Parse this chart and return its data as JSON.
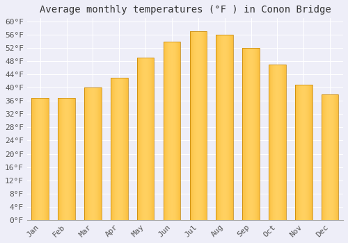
{
  "title": "Average monthly temperatures (°F ) in Conon Bridge",
  "months": [
    "Jan",
    "Feb",
    "Mar",
    "Apr",
    "May",
    "Jun",
    "Jul",
    "Aug",
    "Sep",
    "Oct",
    "Nov",
    "Dec"
  ],
  "values": [
    37,
    37,
    40,
    43,
    49,
    54,
    57,
    56,
    52,
    47,
    41,
    38
  ],
  "bar_color_center": "#FFD060",
  "bar_color_edge": "#F0A000",
  "background_color": "#EEEEF8",
  "grid_color": "#FFFFFF",
  "ytick_min": 0,
  "ytick_max": 60,
  "ytick_step": 4,
  "title_fontsize": 10,
  "tick_fontsize": 8,
  "font_family": "monospace"
}
